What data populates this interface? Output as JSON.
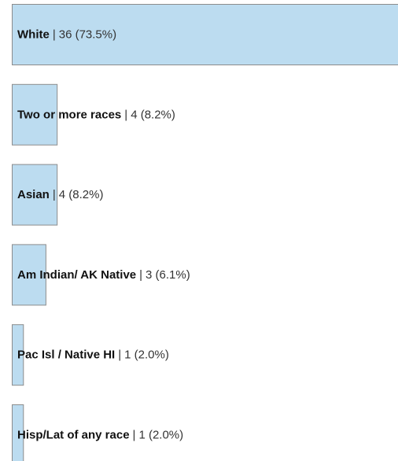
{
  "chart_data": {
    "type": "bar",
    "orientation": "horizontal",
    "categories": [
      "White",
      "Two or more races",
      "Asian",
      "Am Indian/ AK Native",
      "Pac Isl / Native HI",
      "Hisp/Lat of any race"
    ],
    "values": [
      36,
      4,
      4,
      3,
      1,
      1
    ],
    "value_labels": [
      "36 (73.5%)",
      "4 (8.2%)",
      "4 (8.2%)",
      "3 (6.1%)",
      "1 (2.0%)",
      "1 (2.0%)"
    ],
    "separator": "|",
    "color": "#bcdcf0"
  }
}
